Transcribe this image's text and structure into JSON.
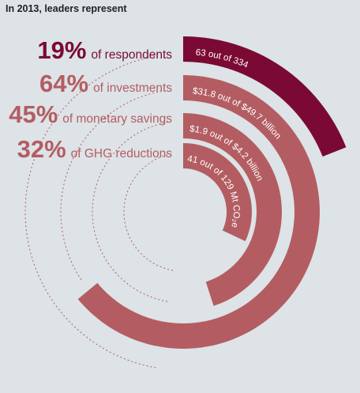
{
  "title": "In 2013, leaders represent",
  "colors": {
    "background": "#dde3e7",
    "highlight": "#7a0a33",
    "ring": "#b35d62",
    "guide": "#b35d62"
  },
  "chart_data": {
    "type": "radial-bar",
    "title": "In 2013, leaders represent",
    "series": [
      {
        "percent": 19,
        "pct_label": "19%",
        "description": "of respondents",
        "detail": "63 out of 334",
        "highlight": true
      },
      {
        "percent": 64,
        "pct_label": "64%",
        "description": "of investments",
        "detail": "$31.8 out of $49.7 billion",
        "highlight": false
      },
      {
        "percent": 45,
        "pct_label": "45%",
        "description": "of monetary savings",
        "detail": "$1.9 out of $4.2 billion",
        "highlight": false
      },
      {
        "percent": 32,
        "pct_label": "32%",
        "description": "of GHG reductions",
        "detail": "41 out of 129 Mt CO₂e",
        "highlight": false
      }
    ]
  }
}
